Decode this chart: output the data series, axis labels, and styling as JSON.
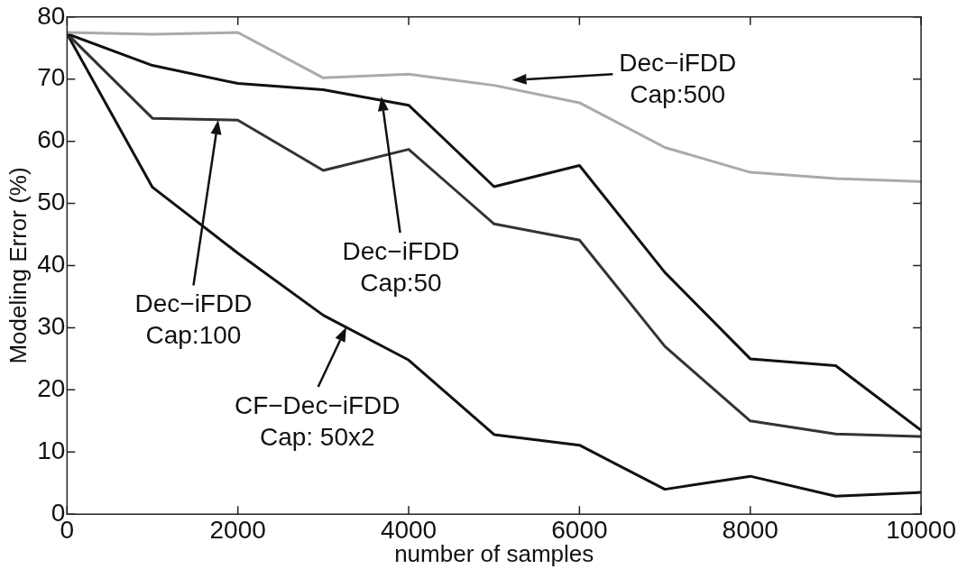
{
  "chart_data": {
    "type": "line",
    "xlabel": "number of samples",
    "ylabel": "Modeling Error (%)",
    "x": [
      0,
      1000,
      2000,
      3000,
      4000,
      5000,
      6000,
      7000,
      8000,
      9000,
      10000
    ],
    "series": [
      {
        "color": "#aaaaaa",
        "values": [
          77.5,
          77.2,
          77.5,
          70.2,
          70.8,
          69,
          66.2,
          59,
          55,
          54,
          53.5
        ]
      },
      {
        "color": "#111111",
        "values": [
          77.3,
          72.2,
          69.3,
          68.3,
          65.8,
          52.7,
          56.1,
          38.9,
          25,
          23.9,
          13.5
        ]
      },
      {
        "color": "#333333",
        "values": [
          77.3,
          63.7,
          63.4,
          55.3,
          58.7,
          46.7,
          44.1,
          27,
          15,
          12.9,
          12.5
        ]
      },
      {
        "color": "#111111",
        "values": [
          77.3,
          52.6,
          42,
          32,
          24.8,
          12.8,
          11.1,
          4,
          6.1,
          2.9,
          3.5
        ]
      }
    ],
    "xlim": [
      0,
      10000
    ],
    "xticks": [
      0,
      2000,
      4000,
      6000,
      8000,
      10000
    ],
    "ylim": [
      0,
      80
    ],
    "yticks": [
      0,
      10,
      20,
      30,
      40,
      50,
      60,
      70,
      80
    ],
    "grid": false,
    "legend": false,
    "marker": "none",
    "line_style": "solid",
    "annotations": [
      "Dec−iFDD\nCap:500",
      "Dec−iFDD\nCap:50",
      "Dec−iFDD\nCap:100",
      {
        "text": "CF−Dec−iFDD\nCap: 50x2",
        "x": 3270,
        "y": 30.1
      }
    ]
  }
}
